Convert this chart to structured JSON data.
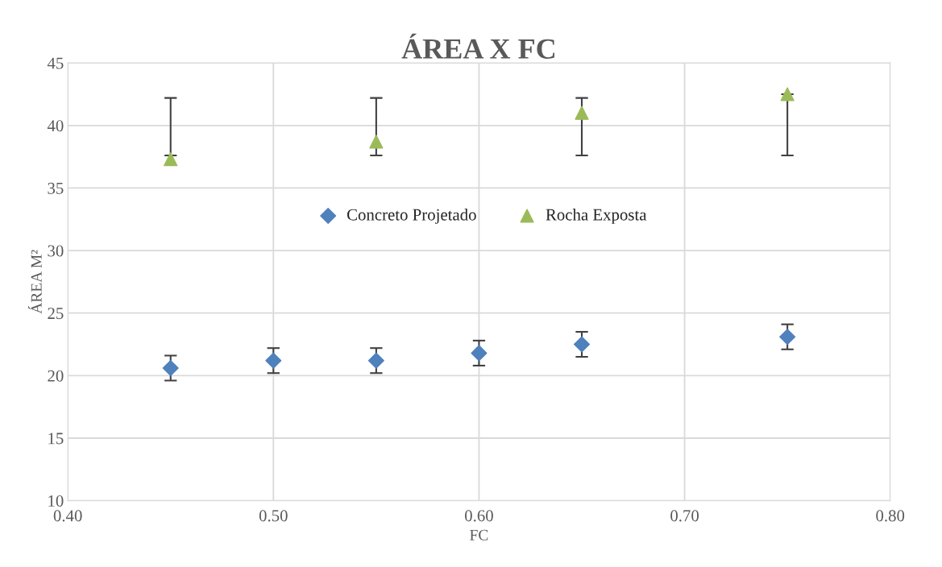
{
  "chart_data": {
    "type": "scatter",
    "title": "ÁREA X FC",
    "xlabel": "FC",
    "ylabel": "ÁREA M²",
    "xlim": [
      0.4,
      0.8
    ],
    "xticks": [
      {
        "value": 0.4,
        "label": "0.40"
      },
      {
        "value": 0.5,
        "label": "0.50"
      },
      {
        "value": 0.6,
        "label": "0.60"
      },
      {
        "value": 0.7,
        "label": "0.70"
      },
      {
        "value": 0.8,
        "label": "0.80"
      }
    ],
    "ylim": [
      10,
      45
    ],
    "yticks": [
      10,
      15,
      20,
      25,
      30,
      35,
      40,
      45
    ],
    "grid": true,
    "legend": "center",
    "series": [
      {
        "name": "Concreto Projetado",
        "color": "#4f81bd",
        "marker": "diamond",
        "x": [
          0.45,
          0.5,
          0.55,
          0.6,
          0.65,
          0.75
        ],
        "values": [
          20.6,
          21.2,
          21.2,
          21.8,
          22.5,
          23.1
        ],
        "errors": [
          1,
          1,
          1,
          1,
          1,
          1
        ]
      },
      {
        "name": "Rocha Exposta",
        "color": "#9bbb59",
        "marker": "triangle",
        "x": [
          0.45,
          0.55,
          0.65,
          0.75
        ],
        "values": [
          37.3,
          38.7,
          41.0,
          42.5
        ],
        "errors": [
          [
            37.6,
            42.2
          ],
          [
            37.6,
            42.2
          ],
          [
            37.6,
            42.2
          ],
          [
            37.6,
            42.5
          ]
        ]
      }
    ]
  }
}
